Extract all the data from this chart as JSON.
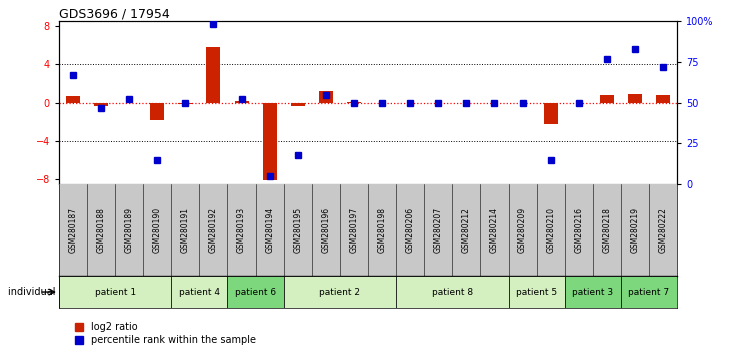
{
  "title": "GDS3696 / 17954",
  "samples": [
    "GSM280187",
    "GSM280188",
    "GSM280189",
    "GSM280190",
    "GSM280191",
    "GSM280192",
    "GSM280193",
    "GSM280194",
    "GSM280195",
    "GSM280196",
    "GSM280197",
    "GSM280198",
    "GSM280206",
    "GSM280207",
    "GSM280212",
    "GSM280214",
    "GSM280209",
    "GSM280210",
    "GSM280216",
    "GSM280218",
    "GSM280219",
    "GSM280222"
  ],
  "log2_ratio": [
    0.7,
    -0.3,
    0.0,
    -1.8,
    -0.1,
    5.8,
    0.2,
    -8.1,
    -0.3,
    1.2,
    0.05,
    0.0,
    0.0,
    0.0,
    0.0,
    0.0,
    0.0,
    -2.2,
    0.0,
    0.8,
    0.9,
    0.8
  ],
  "percentile": [
    67,
    47,
    52,
    15,
    50,
    98,
    52,
    5,
    18,
    55,
    50,
    50,
    50,
    50,
    50,
    50,
    50,
    15,
    50,
    77,
    83,
    72
  ],
  "patients": [
    {
      "label": "patient 1",
      "start": 0,
      "end": 4,
      "color": "#d4f0c0"
    },
    {
      "label": "patient 4",
      "start": 4,
      "end": 6,
      "color": "#d4f0c0"
    },
    {
      "label": "patient 6",
      "start": 6,
      "end": 8,
      "color": "#7dd87d"
    },
    {
      "label": "patient 2",
      "start": 8,
      "end": 12,
      "color": "#d4f0c0"
    },
    {
      "label": "patient 8",
      "start": 12,
      "end": 16,
      "color": "#d4f0c0"
    },
    {
      "label": "patient 5",
      "start": 16,
      "end": 18,
      "color": "#d4f0c0"
    },
    {
      "label": "patient 3",
      "start": 18,
      "end": 20,
      "color": "#7dd87d"
    },
    {
      "label": "patient 7",
      "start": 20,
      "end": 22,
      "color": "#7dd87d"
    }
  ],
  "ylim_left": [
    -8.5,
    8.5
  ],
  "ylim_right": [
    0,
    100
  ],
  "yticks_left": [
    -8,
    -4,
    0,
    4,
    8
  ],
  "yticks_right": [
    0,
    25,
    50,
    75,
    100
  ],
  "bar_color_red": "#CC2200",
  "bar_color_blue": "#0000CC",
  "label_red": "log2 ratio",
  "label_blue": "percentile rank within the sample",
  "sample_box_color": "#c8c8c8",
  "bar_width": 0.5
}
